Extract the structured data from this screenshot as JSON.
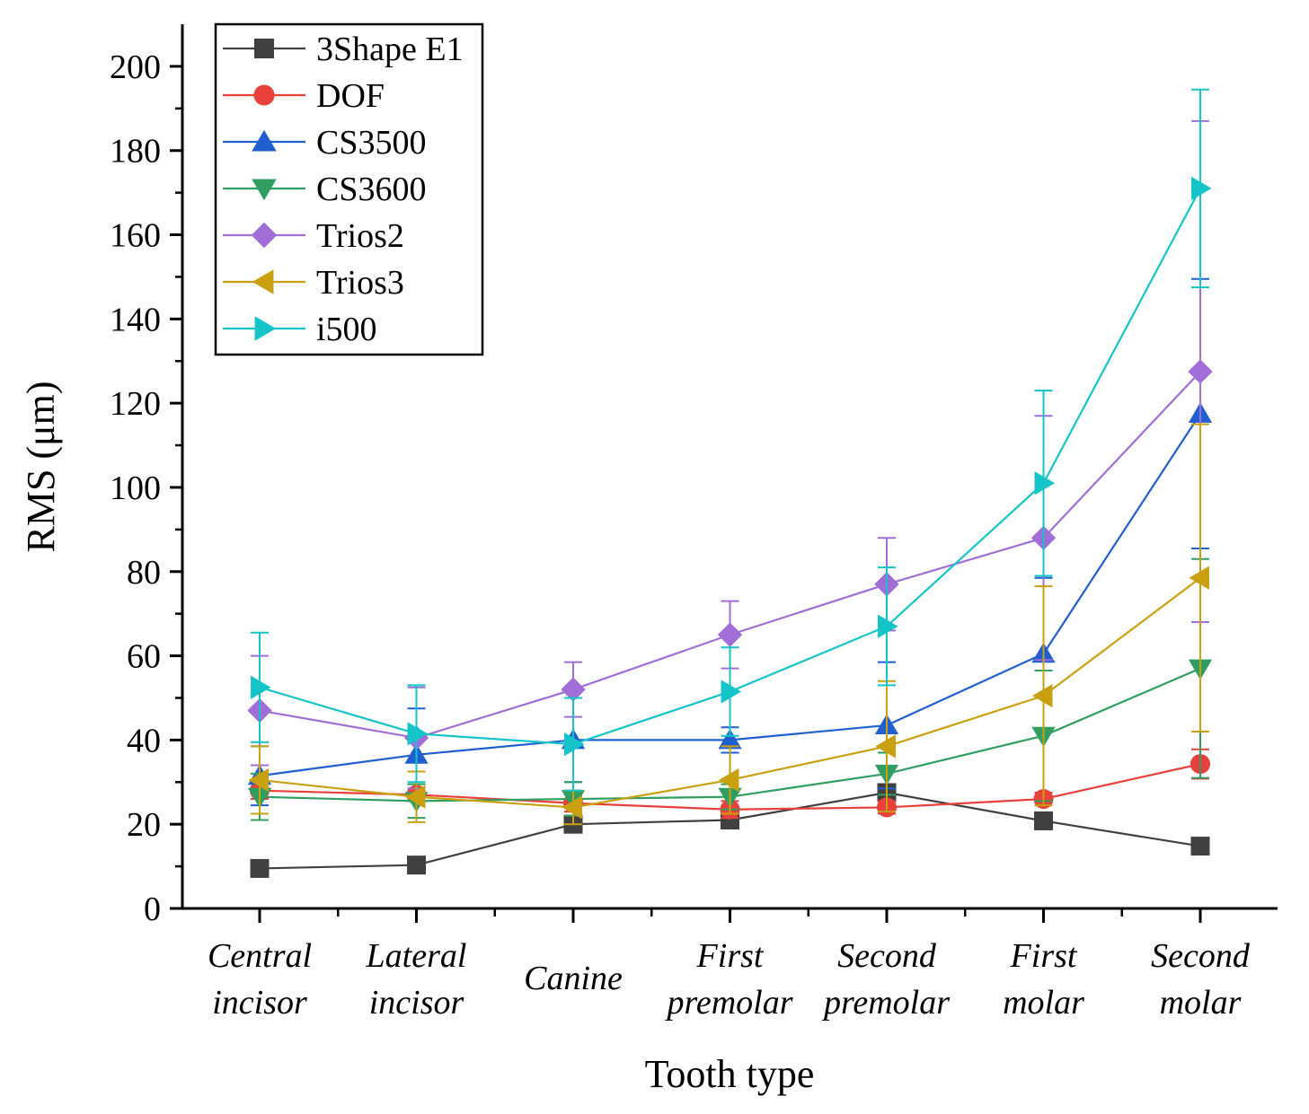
{
  "chart_data": {
    "type": "line",
    "title": "",
    "xlabel": "Tooth type",
    "ylabel": "RMS (μm)",
    "ylim": [
      0,
      210
    ],
    "yticks": [
      0,
      20,
      40,
      60,
      80,
      100,
      120,
      140,
      160,
      180,
      200
    ],
    "categories": [
      [
        "Central",
        "incisor"
      ],
      [
        "Lateral",
        "incisor"
      ],
      [
        "Canine"
      ],
      [
        "First",
        "premolar"
      ],
      [
        "Second",
        "premolar"
      ],
      [
        "First",
        "molar"
      ],
      [
        "Second",
        "molar"
      ]
    ],
    "legend_position": "top-left",
    "series": [
      {
        "name": "3Shape E1",
        "color": "#404040",
        "marker": "square",
        "values": [
          9.5,
          10.3,
          20,
          21,
          27.5,
          20.8,
          14.8
        ],
        "errors": [
          0,
          0,
          0,
          0,
          0,
          0,
          0
        ]
      },
      {
        "name": "DOF",
        "color": "#e8403a",
        "marker": "circle",
        "values": [
          28,
          27,
          25,
          23.5,
          24,
          26,
          34.3
        ],
        "errors": [
          2,
          1.5,
          2,
          2,
          1.5,
          1.5,
          3.5
        ]
      },
      {
        "name": "CS3500",
        "color": "#1f5fcf",
        "marker": "triangle-up",
        "values": [
          31.5,
          36.5,
          40,
          40,
          43.5,
          60.5,
          117.5
        ],
        "errors": [
          7,
          11,
          10,
          3,
          15,
          18,
          32
        ]
      },
      {
        "name": "CS3600",
        "color": "#2f9e60",
        "marker": "triangle-down",
        "values": [
          26.5,
          25.5,
          26,
          26.5,
          32,
          41,
          57
        ],
        "errors": [
          5.5,
          4,
          4,
          3,
          5,
          15.5,
          26
        ]
      },
      {
        "name": "Trios2",
        "color": "#a06ed6",
        "marker": "diamond",
        "values": [
          47,
          40.5,
          52,
          65,
          77,
          88,
          127.5
        ],
        "errors": [
          13,
          12,
          6.5,
          8,
          11,
          29,
          59.5
        ]
      },
      {
        "name": "Trios3",
        "color": "#c9a010",
        "marker": "triangle-left",
        "values": [
          30.5,
          26.5,
          24,
          30.5,
          38.5,
          50.5,
          78.5
        ],
        "errors": [
          8,
          6,
          4,
          8,
          15.5,
          26,
          36.5
        ]
      },
      {
        "name": "i500",
        "color": "#14c4c8",
        "marker": "triangle-right",
        "values": [
          52.5,
          41.5,
          39,
          51.5,
          67,
          101,
          171
        ],
        "errors": [
          13,
          11.5,
          11,
          10.5,
          14,
          22,
          23.5
        ]
      }
    ]
  }
}
